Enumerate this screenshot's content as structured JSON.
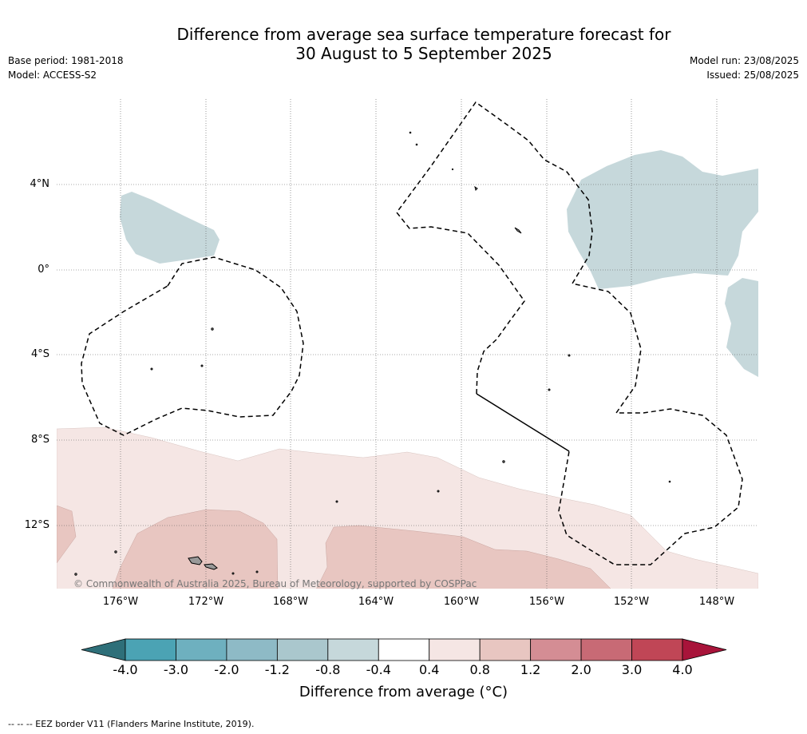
{
  "title_line1": "Difference from average sea surface temperature forecast for",
  "title_line2": "30 August to 5 September 2025",
  "base_period": "Base period: 1981-2018",
  "model": "Model: ACCESS-S2",
  "model_run": "Model run: 23/08/2025",
  "issued": "Issued: 25/08/2025",
  "lat_labels": [
    "4°N",
    "0°",
    "4°S",
    "8°S",
    "12°S"
  ],
  "lon_labels": [
    "176°W",
    "172°W",
    "168°W",
    "164°W",
    "160°W",
    "156°W",
    "152°W",
    "148°W"
  ],
  "copyright": "© Commonwealth of Australia 2025, Bureau of Meteorology, supported by COSPPac",
  "colorbar": {
    "ticks": [
      "-4.0",
      "-3.0",
      "-2.0",
      "-1.2",
      "-0.8",
      "-0.4",
      "0.4",
      "0.8",
      "1.2",
      "2.0",
      "3.0",
      "4.0"
    ],
    "colors": [
      "#2e6f79",
      "#4ba3b4",
      "#6eb0bf",
      "#8ebac6",
      "#aac7cd",
      "#c6d8db",
      "#ffffff",
      "#f5e6e4",
      "#e8c6c1",
      "#d48d94",
      "#c86a75",
      "#c04656",
      "#a8143a"
    ],
    "label": "Difference from average (°C)"
  },
  "footer": "--  --  -- EEZ border V11 (Flanders Marine Institute, 2019)."
}
